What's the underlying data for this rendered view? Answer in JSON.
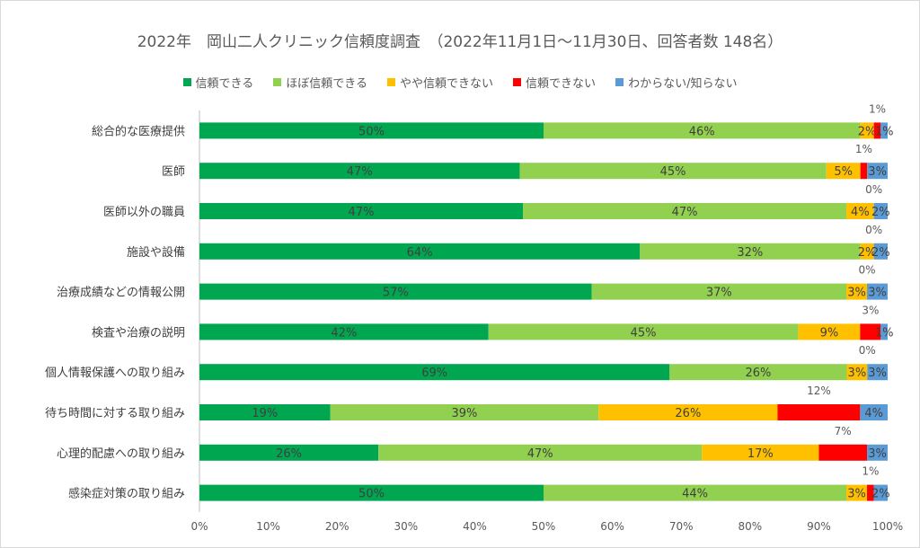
{
  "chart_data": {
    "type": "bar",
    "orientation": "horizontal",
    "stacked": true,
    "title": "2022年　岡山二人クリニック信頼度調査　（2022年11月1日～11月30日、回答者数 148名）",
    "categories": [
      "総合的な医療提供",
      "医師",
      "医師以外の職員",
      "施設や設備",
      "治療成績などの情報公開",
      "検査や治療の説明",
      "個人情報保護への取り組み",
      "待ち時間に対する取り組み",
      "心理的配慮への取り組み",
      "感染症対策の取り組み"
    ],
    "series": [
      {
        "name": "信頼できる",
        "color": "#00a650",
        "values": [
          50,
          47,
          47,
          64,
          57,
          42,
          69,
          19,
          26,
          50
        ]
      },
      {
        "name": "ほぼ信頼できる",
        "color": "#92d050",
        "values": [
          46,
          45,
          47,
          32,
          37,
          45,
          26,
          39,
          47,
          44
        ]
      },
      {
        "name": "やや信頼できない",
        "color": "#ffc000",
        "values": [
          2,
          5,
          4,
          2,
          3,
          9,
          3,
          26,
          17,
          3
        ]
      },
      {
        "name": "信頼できない",
        "color": "#ff0000",
        "values": [
          1,
          1,
          0,
          0,
          0,
          3,
          0,
          12,
          7,
          1
        ]
      },
      {
        "name": "わからない/知らない",
        "color": "#5b9bd5",
        "values": [
          1,
          3,
          2,
          2,
          3,
          1,
          3,
          4,
          3,
          2
        ]
      }
    ],
    "data_labels": [
      [
        "50%",
        "46%",
        "2%",
        "1%",
        "1%"
      ],
      [
        "47%",
        "45%",
        "5%",
        "1%",
        "3%"
      ],
      [
        "47%",
        "47%",
        "4%",
        "0%",
        "2%"
      ],
      [
        "64%",
        "32%",
        "2%",
        "0%",
        "2%"
      ],
      [
        "57%",
        "37%",
        "3%",
        "0%",
        "3%"
      ],
      [
        "42%",
        "45%",
        "9%",
        "3%",
        "1%"
      ],
      [
        "69%",
        "26%",
        "3%",
        "0%",
        "3%"
      ],
      [
        "19%",
        "39%",
        "26%",
        "12%",
        "4%"
      ],
      [
        "26%",
        "47%",
        "17%",
        "7%",
        "3%"
      ],
      [
        "50%",
        "44%",
        "3%",
        "1%",
        "2%"
      ]
    ],
    "xlim": [
      0,
      100
    ],
    "x_ticks": [
      "0%",
      "10%",
      "20%",
      "30%",
      "40%",
      "50%",
      "60%",
      "70%",
      "80%",
      "90%",
      "100%"
    ],
    "grid": false,
    "legend_position": "top"
  }
}
